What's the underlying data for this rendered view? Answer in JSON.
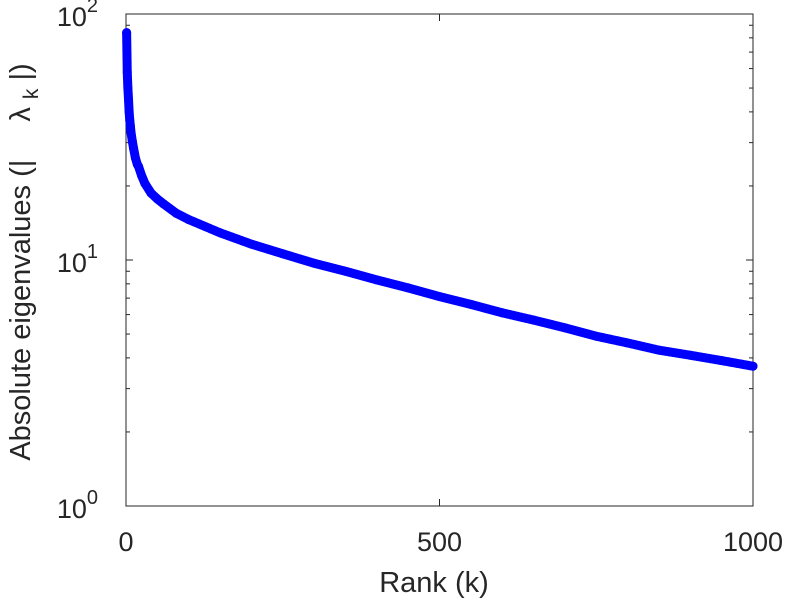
{
  "chart_data": {
    "type": "scatter",
    "title": "",
    "xlabel": "Rank (k)",
    "ylabel": {
      "prefix": "Absolute eigenvalues (|",
      "symbol": "λ",
      "subscript": "k",
      "suffix": "|)"
    },
    "xlim": [
      0,
      1000
    ],
    "ylim": [
      1,
      100
    ],
    "yscale": "log",
    "grid": false,
    "legend": "none",
    "x_ticks": [
      "0",
      "500",
      "1000"
    ],
    "y_ticks": [
      {
        "base": "10",
        "exp": "0"
      },
      {
        "base": "10",
        "exp": "1"
      },
      {
        "base": "10",
        "exp": "2"
      }
    ],
    "series": [
      {
        "color": "#0000ff",
        "marker": "circle",
        "points": [
          [
            1,
            84
          ],
          [
            2,
            58
          ],
          [
            3,
            50
          ],
          [
            4,
            45
          ],
          [
            5,
            40
          ],
          [
            6,
            37
          ],
          [
            7,
            35
          ],
          [
            8,
            33
          ],
          [
            10,
            30.5
          ],
          [
            12,
            28.5
          ],
          [
            15,
            26
          ],
          [
            18,
            24.5
          ],
          [
            20,
            24
          ],
          [
            25,
            22
          ],
          [
            30,
            20.5
          ],
          [
            40,
            18.7
          ],
          [
            50,
            17.7
          ],
          [
            60,
            16.9
          ],
          [
            80,
            15.5
          ],
          [
            100,
            14.6
          ],
          [
            150,
            12.9
          ],
          [
            200,
            11.6
          ],
          [
            250,
            10.6
          ],
          [
            300,
            9.7
          ],
          [
            350,
            9.0
          ],
          [
            400,
            8.3
          ],
          [
            450,
            7.7
          ],
          [
            500,
            7.1
          ],
          [
            550,
            6.6
          ],
          [
            600,
            6.1
          ],
          [
            650,
            5.7
          ],
          [
            700,
            5.3
          ],
          [
            750,
            4.9
          ],
          [
            800,
            4.6
          ],
          [
            850,
            4.3
          ],
          [
            900,
            4.1
          ],
          [
            950,
            3.9
          ],
          [
            1000,
            3.7
          ]
        ]
      }
    ]
  }
}
